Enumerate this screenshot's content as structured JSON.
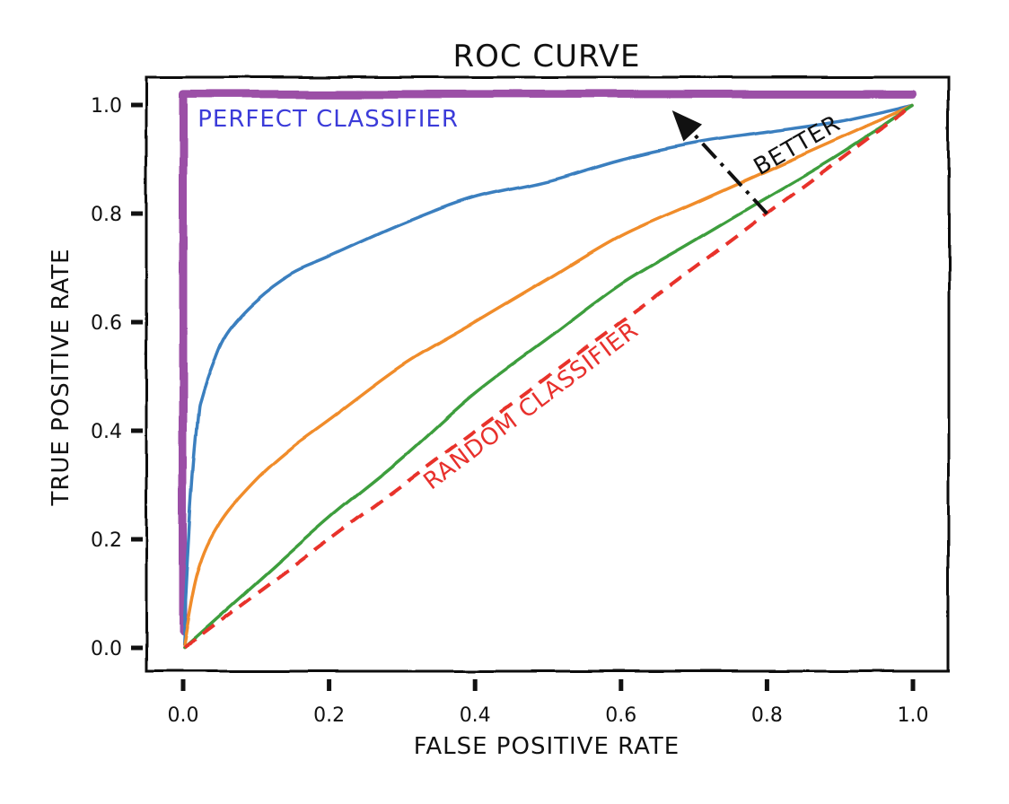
{
  "chart_data": {
    "type": "line",
    "title": "ROC CURVE",
    "xlabel": "FALSE POSITIVE RATE",
    "ylabel": "TRUE POSITIVE RATE",
    "xlim": [
      -0.05,
      1.05
    ],
    "ylim": [
      -0.05,
      1.05
    ],
    "xticks": [
      0.0,
      0.2,
      0.4,
      0.6,
      0.8,
      1.0
    ],
    "xtick_labels": [
      "0.0",
      "0.2",
      "0.4",
      "0.6",
      "0.8",
      "1.0"
    ],
    "yticks": [
      0.0,
      0.2,
      0.4,
      0.6,
      0.8,
      1.0
    ],
    "ytick_labels": [
      "0.0",
      "0.2",
      "0.4",
      "0.6",
      "0.8",
      "1.0"
    ],
    "grid": false,
    "style": "xkcd",
    "series": [
      {
        "color": "#9b4fa6",
        "line_style": "solid-thick",
        "x": [
          0.0,
          0.0,
          1.0
        ],
        "y": [
          0.03,
          1.02,
          1.02
        ]
      },
      {
        "color": "#3a7fbf",
        "line_style": "solid",
        "x": [
          0.0,
          0.01,
          0.02,
          0.025,
          0.04,
          0.06,
          0.1,
          0.15,
          0.2,
          0.3,
          0.4,
          0.5,
          0.6,
          0.7,
          0.8,
          0.9,
          1.0
        ],
        "y": [
          0.0,
          0.25,
          0.42,
          0.46,
          0.52,
          0.58,
          0.64,
          0.69,
          0.72,
          0.78,
          0.83,
          0.86,
          0.9,
          0.93,
          0.95,
          0.97,
          1.0
        ]
      },
      {
        "color": "#f08c2c",
        "line_style": "solid",
        "x": [
          0.0,
          0.02,
          0.05,
          0.1,
          0.15,
          0.2,
          0.3,
          0.4,
          0.5,
          0.6,
          0.7,
          0.8,
          0.9,
          1.0
        ],
        "y": [
          0.0,
          0.14,
          0.23,
          0.31,
          0.37,
          0.42,
          0.52,
          0.6,
          0.68,
          0.76,
          0.82,
          0.88,
          0.94,
          1.0
        ]
      },
      {
        "color": "#3e9e3e",
        "line_style": "solid",
        "x": [
          0.0,
          0.05,
          0.1,
          0.2,
          0.3,
          0.4,
          0.5,
          0.6,
          0.7,
          0.8,
          0.9,
          1.0
        ],
        "y": [
          0.0,
          0.06,
          0.12,
          0.24,
          0.35,
          0.47,
          0.57,
          0.67,
          0.75,
          0.83,
          0.91,
          1.0
        ]
      },
      {
        "color": "#e8302c",
        "line_style": "dashed",
        "x": [
          0.0,
          1.0
        ],
        "y": [
          0.0,
          1.0
        ]
      }
    ],
    "annotations": [
      {
        "text": "PERFECT CLASSIFIER",
        "x": 0.02,
        "y": 0.96,
        "color": "#3b3bd9",
        "rotation": 0
      },
      {
        "text": "RANDOM CLASSIFIER",
        "x": 0.34,
        "y": 0.29,
        "color": "#e8302c",
        "rotation": -37
      },
      {
        "text": "BETTER",
        "x": 0.79,
        "y": 0.87,
        "color": "#111111",
        "rotation": -30
      },
      {
        "text": "",
        "arrow_from": [
          0.8,
          0.8
        ],
        "arrow_to": [
          0.67,
          0.99
        ],
        "color": "#111111"
      }
    ]
  }
}
